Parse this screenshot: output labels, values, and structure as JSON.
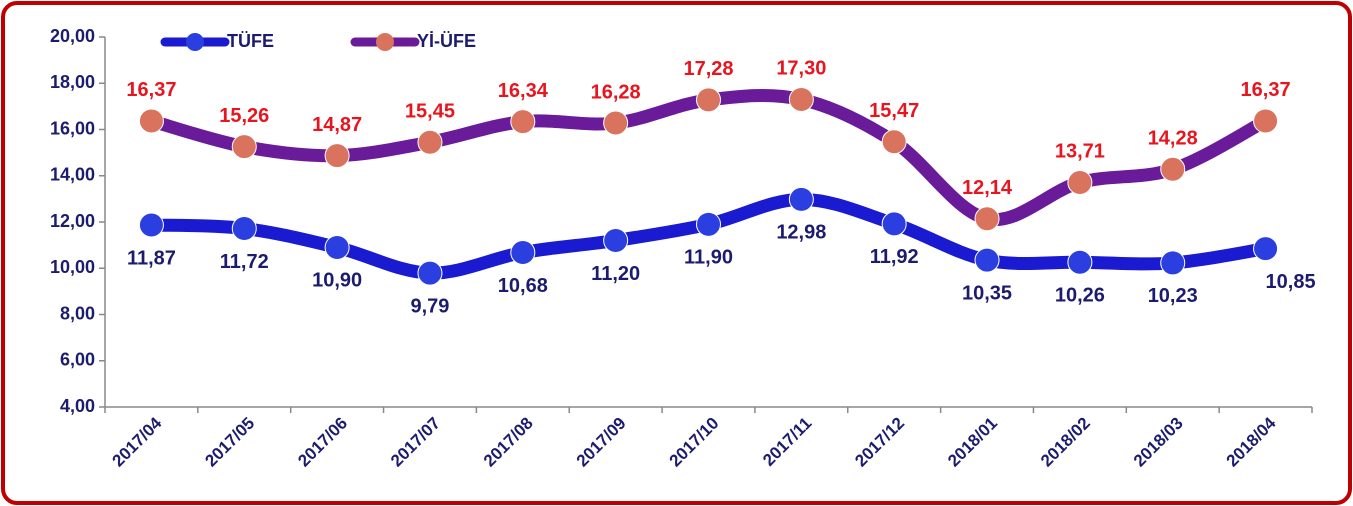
{
  "chart_data": {
    "type": "line",
    "categories": [
      "2017/04",
      "2017/05",
      "2017/06",
      "2017/07",
      "2017/08",
      "2017/09",
      "2017/10",
      "2017/11",
      "2017/12",
      "2018/01",
      "2018/02",
      "2018/03",
      "2018/04"
    ],
    "series": [
      {
        "name": "TÜFE",
        "color": "#1a1ad0",
        "marker_color": "#2b3fe0",
        "label_color": "#1c1c6e",
        "values": [
          11.87,
          11.72,
          10.9,
          9.79,
          10.68,
          11.2,
          11.9,
          12.98,
          11.92,
          10.35,
          10.26,
          10.23,
          10.85
        ],
        "value_labels": [
          "11,87",
          "11,72",
          "10,90",
          "9,79",
          "10,68",
          "11,20",
          "11,90",
          "12,98",
          "11,92",
          "10,35",
          "10,26",
          "10,23",
          "10,85"
        ]
      },
      {
        "name": "Yİ-ÜFE",
        "color": "#6a1b9a",
        "marker_color": "#d9735e",
        "label_color": "#e8141e",
        "values": [
          16.37,
          15.26,
          14.87,
          15.45,
          16.34,
          16.28,
          17.28,
          17.3,
          15.47,
          12.14,
          13.71,
          14.28,
          16.37
        ],
        "value_labels": [
          "16,37",
          "15,26",
          "14,87",
          "15,45",
          "16,34",
          "16,28",
          "17,28",
          "17,30",
          "15,47",
          "12,14",
          "13,71",
          "14,28",
          "16,37"
        ]
      }
    ],
    "ylim": [
      4,
      20
    ],
    "yticks": [
      {
        "value": 4,
        "label": "4,00"
      },
      {
        "value": 6,
        "label": "6,00"
      },
      {
        "value": 8,
        "label": "8,00"
      },
      {
        "value": 10,
        "label": "10,00"
      },
      {
        "value": 12,
        "label": "12,00"
      },
      {
        "value": 14,
        "label": "14,00"
      },
      {
        "value": 16,
        "label": "16,00"
      },
      {
        "value": 18,
        "label": "18,00"
      },
      {
        "value": 20,
        "label": "20,00"
      }
    ],
    "legend": "top-left"
  }
}
